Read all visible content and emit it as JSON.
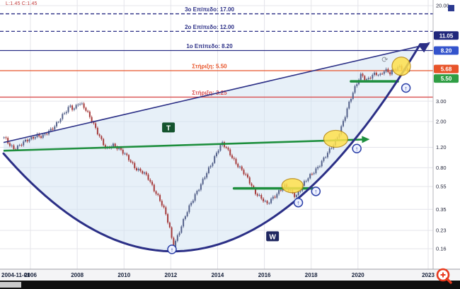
{
  "window": {
    "legend": "L:1.45  C:1.45"
  },
  "chart_data": {
    "type": "candlestick",
    "title": "",
    "y_axis": {
      "scale": "log",
      "range": [
        0.16,
        20.0
      ],
      "ticks": [
        "20.00",
        "3.00",
        "2.00",
        "1.20",
        "0.80",
        "0.55",
        "0.35",
        "0.23",
        "0.16"
      ],
      "tick_values": [
        20.0,
        3.0,
        2.0,
        1.2,
        0.8,
        0.55,
        0.35,
        0.23,
        0.16
      ]
    },
    "x_axis": {
      "start_year": 2004.85,
      "end_year": 2023.0,
      "ticks": [
        {
          "label": "2004-11-01",
          "year": 2004.85,
          "align": "start",
          "grid": false
        },
        {
          "label": "2006",
          "year": 2006,
          "align": "middle",
          "grid": true
        },
        {
          "label": "2008",
          "year": 2008,
          "align": "middle",
          "grid": true
        },
        {
          "label": "2010",
          "year": 2010,
          "align": "middle",
          "grid": true
        },
        {
          "label": "2012",
          "year": 2012,
          "align": "middle",
          "grid": true
        },
        {
          "label": "2014",
          "year": 2014,
          "align": "middle",
          "grid": true
        },
        {
          "label": "2016",
          "year": 2016,
          "align": "middle",
          "grid": true
        },
        {
          "label": "2018",
          "year": 2018,
          "align": "middle",
          "grid": true
        },
        {
          "label": "2020",
          "year": 2020,
          "align": "middle",
          "grid": true
        },
        {
          "label": "2023",
          "year": 2023,
          "align": "middle",
          "grid": true
        }
      ]
    },
    "series": {
      "name": "monthly-price",
      "last_close": 5.68,
      "control_points": [
        [
          2004.85,
          1.45
        ],
        [
          2004.95,
          1.38
        ],
        [
          2005.1,
          1.26
        ],
        [
          2005.3,
          1.18
        ],
        [
          2005.5,
          1.24
        ],
        [
          2005.75,
          1.32
        ],
        [
          2006.0,
          1.42
        ],
        [
          2006.25,
          1.55
        ],
        [
          2006.5,
          1.47
        ],
        [
          2006.75,
          1.6
        ],
        [
          2007.0,
          1.82
        ],
        [
          2007.25,
          2.1
        ],
        [
          2007.5,
          2.38
        ],
        [
          2007.7,
          2.72
        ],
        [
          2007.85,
          2.58
        ],
        [
          2008.05,
          2.95
        ],
        [
          2008.25,
          2.7
        ],
        [
          2008.5,
          2.25
        ],
        [
          2008.75,
          1.85
        ],
        [
          2009.0,
          1.42
        ],
        [
          2009.25,
          1.12
        ],
        [
          2009.5,
          1.28
        ],
        [
          2009.75,
          1.2
        ],
        [
          2010.0,
          1.05
        ],
        [
          2010.25,
          0.92
        ],
        [
          2010.5,
          0.8
        ],
        [
          2010.75,
          0.74
        ],
        [
          2011.0,
          0.66
        ],
        [
          2011.25,
          0.54
        ],
        [
          2011.5,
          0.44
        ],
        [
          2011.75,
          0.33
        ],
        [
          2011.95,
          0.24
        ],
        [
          2012.1,
          0.17
        ],
        [
          2012.3,
          0.21
        ],
        [
          2012.55,
          0.28
        ],
        [
          2012.8,
          0.37
        ],
        [
          2013.05,
          0.48
        ],
        [
          2013.3,
          0.58
        ],
        [
          2013.55,
          0.72
        ],
        [
          2013.8,
          0.92
        ],
        [
          2014.0,
          1.15
        ],
        [
          2014.2,
          1.3
        ],
        [
          2014.45,
          1.1
        ],
        [
          2014.7,
          0.94
        ],
        [
          2015.0,
          0.78
        ],
        [
          2015.3,
          0.63
        ],
        [
          2015.6,
          0.5
        ],
        [
          2015.9,
          0.43
        ],
        [
          2016.1,
          0.38
        ],
        [
          2016.35,
          0.44
        ],
        [
          2016.6,
          0.5
        ],
        [
          2016.85,
          0.55
        ],
        [
          2017.1,
          0.5
        ],
        [
          2017.35,
          0.46
        ],
        [
          2017.6,
          0.55
        ],
        [
          2017.85,
          0.64
        ],
        [
          2018.1,
          0.74
        ],
        [
          2018.35,
          0.85
        ],
        [
          2018.6,
          0.98
        ],
        [
          2018.85,
          1.18
        ],
        [
          2019.05,
          1.4
        ],
        [
          2019.25,
          1.7
        ],
        [
          2019.45,
          2.2
        ],
        [
          2019.65,
          3.0
        ],
        [
          2019.85,
          3.9
        ],
        [
          2020.0,
          4.6
        ],
        [
          2020.15,
          5.15
        ],
        [
          2020.35,
          4.4
        ],
        [
          2020.55,
          4.85
        ],
        [
          2020.75,
          5.35
        ],
        [
          2020.95,
          5.05
        ],
        [
          2021.15,
          5.5
        ],
        [
          2021.35,
          5.15
        ],
        [
          2021.55,
          5.7
        ],
        [
          2021.75,
          6.05
        ],
        [
          2021.95,
          5.6
        ],
        [
          2022.1,
          5.4
        ],
        [
          2022.25,
          5.68
        ]
      ]
    },
    "colors": {
      "up": "#54618a",
      "down": "#a63a3a",
      "grid": "#e4e4ea",
      "wedge_fill": "#cfe2f2",
      "navy": "#2b2f86",
      "green": "#1e8f3e",
      "orange": "#e8542a",
      "red": "#d94f4f",
      "yellow": "#ffe14d",
      "badge_navy": "#20277b",
      "badge_blue": "#3353cc",
      "badge_orange": "#e8542a",
      "badge_green": "#2f9e44"
    },
    "levels": [
      {
        "label": "3ο Επίπεδο: 17.00",
        "value": 17.0,
        "style": "dashed",
        "color_key": "navy"
      },
      {
        "label": "2ο Επίπεδο: 12.00",
        "value": 12.0,
        "style": "dashed",
        "color_key": "navy"
      },
      {
        "label": "1ο Επίπεδο: 8.20",
        "value": 8.2,
        "style": "solid",
        "color_key": "navy"
      },
      {
        "label": "Στήριξη: 5.50",
        "value": 5.5,
        "style": "solid",
        "color_key": "orange"
      },
      {
        "label": "Στήριξη: 3.25",
        "value": 3.25,
        "style": "solid",
        "color_key": "red"
      }
    ],
    "price_badges": [
      {
        "text": "11.05",
        "value": 11.05,
        "color_key": "badge_navy"
      },
      {
        "text": "8.20",
        "value": 8.2,
        "color_key": "badge_blue"
      },
      {
        "text": "5.68",
        "value": 5.68,
        "color_key": "badge_orange"
      },
      {
        "text": "5.50",
        "value": 5.5,
        "color_key": "badge_green"
      }
    ],
    "annotations": {
      "trend_line": {
        "label": "T",
        "from": [
          2004.85,
          1.12
        ],
        "to": [
          2020.2,
          1.4
        ],
        "label_at": [
          2011.9,
          1.78
        ]
      },
      "cup_curve": {
        "label": "W",
        "points": [
          [
            2004.85,
            1.06
          ],
          [
            2012.1,
            0.152
          ],
          [
            2022.66,
            9.3
          ]
        ],
        "label_at": [
          2016.35,
          0.205
        ]
      },
      "wedge_top": [
        [
          2004.85,
          1.32
        ],
        [
          2023.0,
          9.3
        ]
      ],
      "support_segments": [
        [
          [
            2014.7,
            0.53
          ],
          [
            2018.1,
            0.53
          ]
        ],
        [
          [
            2019.7,
            4.45
          ],
          [
            2021.7,
            4.45
          ]
        ]
      ],
      "ellipses": [
        {
          "at": [
            2017.2,
            0.56
          ],
          "rx": 15,
          "ry": 10
        },
        {
          "at": [
            2019.05,
            1.42
          ],
          "rx": 17,
          "ry": 12
        },
        {
          "at": [
            2021.85,
            6.0
          ],
          "rx": 13,
          "ry": 13
        }
      ],
      "up_markers": [
        [
          2012.05,
          0.158
        ],
        [
          2017.45,
          0.4
        ],
        [
          2018.2,
          0.5
        ],
        [
          2019.95,
          1.17
        ],
        [
          2022.05,
          3.9
        ]
      ],
      "refresh_icon_at": [
        2021.15,
        6.9
      ]
    }
  }
}
